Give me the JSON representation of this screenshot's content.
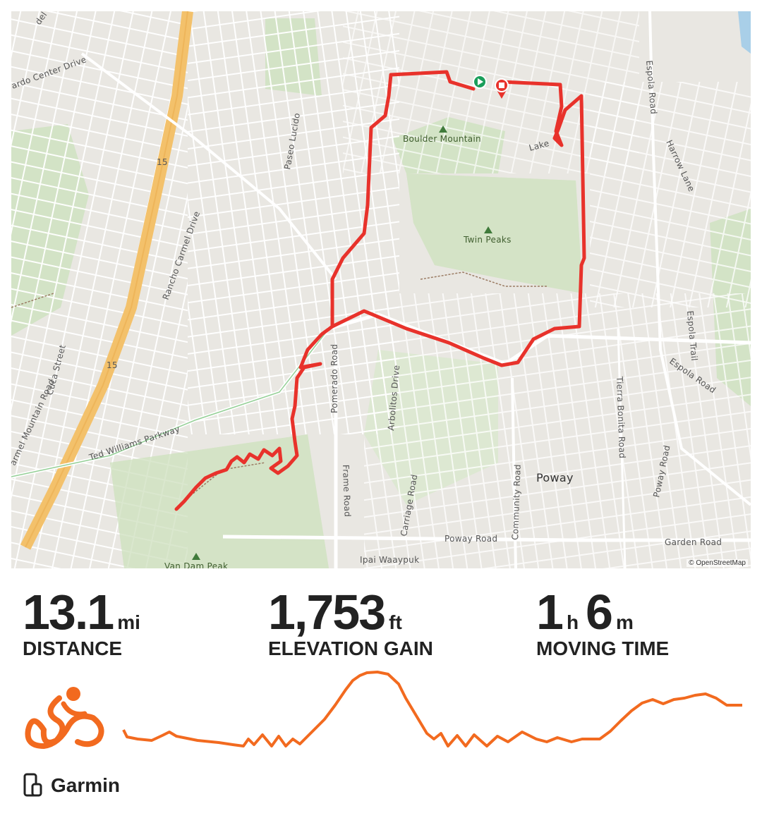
{
  "map": {
    "attribution": "© OpenStreetMap",
    "route_color": "#e8322b",
    "start_color": "#1a9e5a",
    "end_color": "#e8322b",
    "labels": {
      "del_norte": "del Norte",
      "bernardo_center": "ardo Center Drive",
      "freeway_15a": "15",
      "freeway_15b": "15",
      "paseo_lucido": "Paseo Lucido",
      "boulder_mountain": "Boulder Mountain",
      "lake": "Lake",
      "espola_road": "Espola Road",
      "harrow_lane": "Harrow Lane",
      "rancho_carmel": "Rancho Carmel Drive",
      "twin_peaks": "Twin Peaks",
      "espola_trail": "Espola Trail",
      "espola_road2": "Espola Road",
      "cuca_street": "Cuca Street",
      "carmel_mountain": "armel Mountain Road",
      "ted_williams": "Ted Williams Parkway",
      "pomerado": "Pomerado Road",
      "arbolitos": "Arbolitos Drive",
      "tierra_bonita": "Tierra Bonita Road",
      "frame_road": "Frame Road",
      "carriage_road": "Carriage Road",
      "community_road": "Community Road",
      "poway": "Poway",
      "poway_road": "Poway Road",
      "poway_road2": "Poway Road",
      "garden_road": "Garden Road",
      "ipai": "Ipai Waaypuk",
      "van_dam": "Van Dam Peak"
    }
  },
  "stats": [
    {
      "value": "13.1",
      "unit": "mi",
      "label": "DISTANCE"
    },
    {
      "value": "1,753",
      "unit": "ft",
      "label": "ELEVATION GAIN"
    },
    {
      "time_h": "1",
      "unit_h": "h",
      "time_m": "6",
      "unit_m": "m",
      "label": "MOVING TIME"
    }
  ],
  "activity": {
    "type_icon": "cycling-icon",
    "accent": "#f26a1f"
  },
  "device": {
    "icon": "phone-watch-icon",
    "name": "Garmin"
  }
}
